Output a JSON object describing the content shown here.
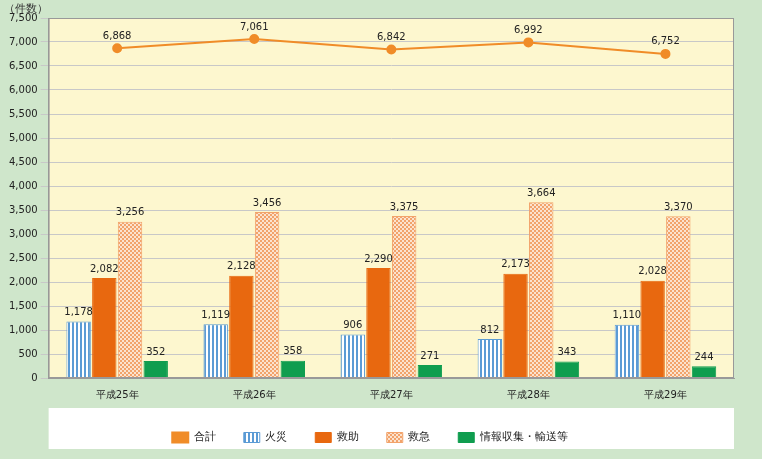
{
  "chart_data": {
    "type": "bar",
    "y_label": "（件数）",
    "categories": [
      "平成25年",
      "平成26年",
      "平成27年",
      "平成28年",
      "平成29年"
    ],
    "series": [
      {
        "name": "火災",
        "color": "#5b9bd5",
        "values": [
          1178,
          1119,
          906,
          812,
          1110
        ],
        "value_labels": [
          "1,178",
          "1,119",
          "906",
          "812",
          "1,110"
        ]
      },
      {
        "name": "救助",
        "color": "#e8680f",
        "values": [
          2082,
          2128,
          2290,
          2173,
          2028
        ],
        "value_labels": [
          "2,082",
          "2,128",
          "2,290",
          "2,173",
          "2,028"
        ]
      },
      {
        "name": "救急",
        "color": "#f2a36b",
        "values": [
          3256,
          3456,
          3375,
          3664,
          3370
        ],
        "value_labels": [
          "3,256",
          "3,456",
          "3,375",
          "3,664",
          "3,370"
        ]
      },
      {
        "name": "情報収集・輸送等",
        "color": "#0f9d4f",
        "values": [
          352,
          358,
          271,
          343,
          244
        ]
      },
      {
        "name": "合計",
        "color": "#f08c28",
        "type": "line",
        "marker": "circle",
        "values": [
          6868,
          7061,
          6842,
          6992,
          6752
        ],
        "value_labels": [
          "6,868",
          "7,061",
          "6,842",
          "6,992",
          "6,752"
        ]
      }
    ],
    "ylim": [
      0,
      7500
    ],
    "yticks": [
      0,
      500,
      {
        "value": 1000,
        "label": "1,000"
      },
      {
        "value": 1500,
        "label": "1,500"
      },
      {
        "value": 2000,
        "label": "2,000"
      },
      {
        "value": 2500,
        "label": "2,500"
      },
      {
        "value": 3000,
        "label": "3,000"
      },
      {
        "value": 3500,
        "label": "3,500"
      },
      {
        "value": 4000,
        "label": "4,000"
      },
      {
        "value": 4500,
        "label": "4,500"
      },
      {
        "value": 5000,
        "label": "5,000"
      },
      {
        "value": 5500,
        "label": "5,500"
      },
      {
        "value": 6000,
        "label": "6,000"
      },
      {
        "value": 6500,
        "label": "6,500"
      },
      {
        "value": 7000,
        "label": "7,000"
      },
      {
        "value": 7500,
        "label": "7,500"
      }
    ],
    "grid": true,
    "legend": "bottom",
    "data_labels": true
  }
}
